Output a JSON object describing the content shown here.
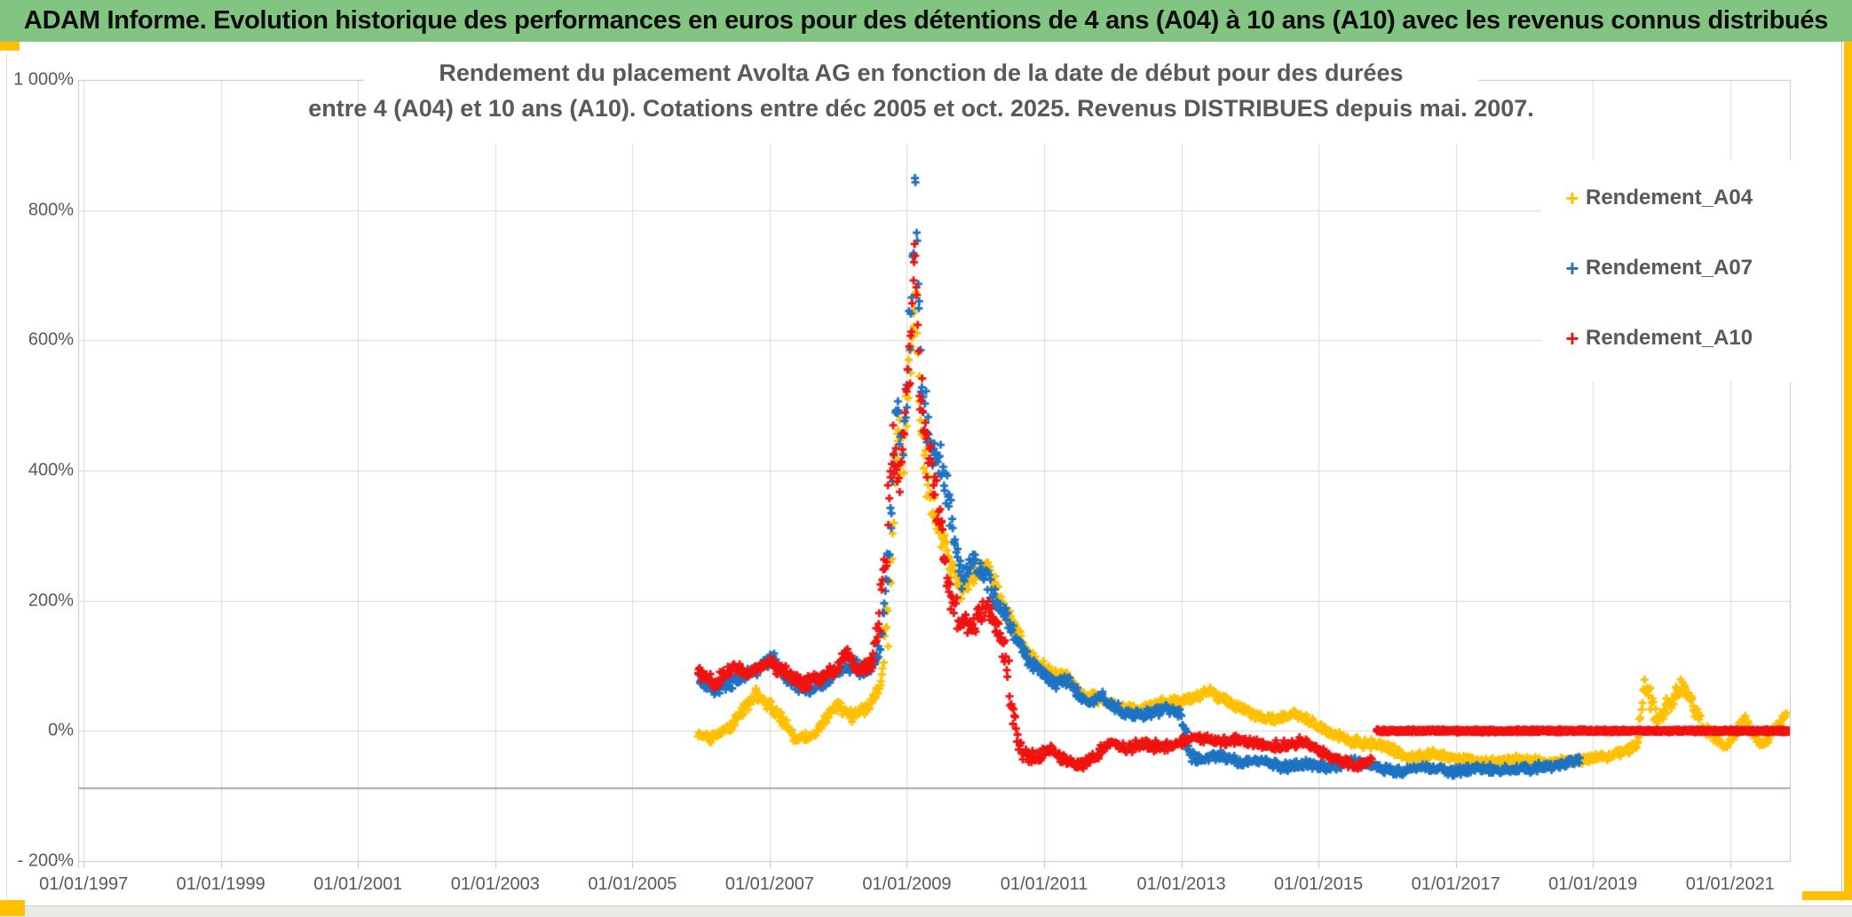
{
  "header": {
    "title": "ADAM Informe. Evolution historique des performances en euros pour des détentions de 4 ans (A04) à 10 ans (A10) avec les revenus connus distribués",
    "bg_color": "#82c482",
    "text_color": "#0d0d0d"
  },
  "frame": {
    "accent_yellow": "#ffc000",
    "bottom_bar_color": "#e9e9e6"
  },
  "chart_data": {
    "type": "scatter",
    "title_line1": "Rendement du placement Avolta AG en fonction de la date de début pour des durées",
    "title_line2": "entre 4 (A04) et 10 ans (A10). Cotations entre déc 2005 et oct. 2025. Revenus DISTRIBUES depuis mai. 2007.",
    "x_axis": {
      "tick_years": [
        1997,
        1999,
        2001,
        2003,
        2005,
        2007,
        2009,
        2011,
        2013,
        2015,
        2017,
        2019,
        2021
      ],
      "tick_labels": [
        "01/01/1997",
        "01/01/1999",
        "01/01/2001",
        "01/01/2003",
        "01/01/2005",
        "01/01/2007",
        "01/01/2009",
        "01/01/2011",
        "01/01/2013",
        "01/01/2015",
        "01/01/2017",
        "01/01/2019",
        "01/01/2021"
      ],
      "min_year": 1996.92,
      "max_year": 2021.87
    },
    "y_axis": {
      "tick_values": [
        1000,
        800,
        600,
        400,
        200,
        0,
        -200
      ],
      "tick_labels": [
        "1 000%",
        "800%",
        "600%",
        "400%",
        "200%",
        "0%",
        "- 200%"
      ],
      "min": -200,
      "max": 1000,
      "grid": true,
      "gridline_color": "#d9d9d9"
    },
    "axis_line_value": -88,
    "axis_line_color": "#ababab",
    "legend": {
      "position": "right",
      "items": [
        {
          "label": "Rendement_A04",
          "color": "#ffc000"
        },
        {
          "label": "Rendement_A07",
          "color": "#1e73c2"
        },
        {
          "label": "Rendement_A10",
          "color": "#f01310"
        }
      ]
    },
    "series": [
      {
        "name": "Rendement_A04",
        "color": "#ffc000",
        "marker": "plus",
        "keyframes": [
          [
            2005.95,
            -5,
            8
          ],
          [
            2006.15,
            -12,
            8
          ],
          [
            2006.45,
            8,
            10
          ],
          [
            2006.8,
            58,
            12
          ],
          [
            2007.1,
            28,
            12
          ],
          [
            2007.4,
            -15,
            10
          ],
          [
            2007.65,
            -5,
            8
          ],
          [
            2008.0,
            42,
            12
          ],
          [
            2008.2,
            22,
            10
          ],
          [
            2008.45,
            38,
            12
          ],
          [
            2008.62,
            70,
            20
          ],
          [
            2008.75,
            200,
            60
          ],
          [
            2008.85,
            460,
            70
          ],
          [
            2008.95,
            420,
            60
          ],
          [
            2009.05,
            560,
            60
          ],
          [
            2009.13,
            680,
            30
          ],
          [
            2009.2,
            470,
            60
          ],
          [
            2009.35,
            330,
            45
          ],
          [
            2009.5,
            300,
            35
          ],
          [
            2009.65,
            250,
            28
          ],
          [
            2009.8,
            220,
            22
          ],
          [
            2010.0,
            245,
            22
          ],
          [
            2010.18,
            255,
            22
          ],
          [
            2010.38,
            195,
            18
          ],
          [
            2010.58,
            155,
            15
          ],
          [
            2010.78,
            118,
            12
          ],
          [
            2010.95,
            100,
            10
          ],
          [
            2011.15,
            88,
            10
          ],
          [
            2011.3,
            90,
            10
          ],
          [
            2011.55,
            55,
            10
          ],
          [
            2011.8,
            50,
            10
          ],
          [
            2012.1,
            38,
            9
          ],
          [
            2012.4,
            32,
            9
          ],
          [
            2012.7,
            42,
            9
          ],
          [
            2013.0,
            45,
            9
          ],
          [
            2013.4,
            60,
            9
          ],
          [
            2013.75,
            40,
            9
          ],
          [
            2014.1,
            24,
            9
          ],
          [
            2014.4,
            16,
            9
          ],
          [
            2014.65,
            28,
            9
          ],
          [
            2015.0,
            5,
            9
          ],
          [
            2015.35,
            -10,
            9
          ],
          [
            2015.7,
            -20,
            9
          ],
          [
            2016.0,
            -25,
            9
          ],
          [
            2016.3,
            -42,
            8
          ],
          [
            2016.7,
            -36,
            8
          ],
          [
            2017.1,
            -45,
            8
          ],
          [
            2017.5,
            -48,
            8
          ],
          [
            2017.9,
            -43,
            8
          ],
          [
            2018.3,
            -50,
            8
          ],
          [
            2018.7,
            -45,
            8
          ],
          [
            2019.1,
            -40,
            8
          ],
          [
            2019.45,
            -33,
            8
          ],
          [
            2019.65,
            -18,
            10
          ],
          [
            2019.75,
            75,
            18
          ],
          [
            2019.85,
            50,
            25
          ],
          [
            2019.95,
            12,
            15
          ],
          [
            2020.1,
            42,
            18
          ],
          [
            2020.3,
            72,
            16
          ],
          [
            2020.45,
            42,
            15
          ],
          [
            2020.6,
            5,
            12
          ],
          [
            2020.78,
            -12,
            10
          ],
          [
            2020.95,
            -25,
            8
          ],
          [
            2021.1,
            2,
            10
          ],
          [
            2021.2,
            20,
            8
          ],
          [
            2021.35,
            -8,
            8
          ],
          [
            2021.5,
            -20,
            8
          ],
          [
            2021.65,
            3,
            8
          ],
          [
            2021.82,
            25,
            8
          ]
        ]
      },
      {
        "name": "Rendement_A07",
        "color": "#1e73c2",
        "marker": "plus",
        "keyframes": [
          [
            2005.95,
            85,
            12
          ],
          [
            2006.2,
            62,
            12
          ],
          [
            2006.5,
            78,
            12
          ],
          [
            2006.8,
            95,
            12
          ],
          [
            2007.05,
            112,
            12
          ],
          [
            2007.25,
            80,
            12
          ],
          [
            2007.5,
            60,
            10
          ],
          [
            2007.75,
            70,
            10
          ],
          [
            2008.0,
            92,
            12
          ],
          [
            2008.2,
            100,
            14
          ],
          [
            2008.45,
            88,
            14
          ],
          [
            2008.62,
            130,
            25
          ],
          [
            2008.75,
            280,
            80
          ],
          [
            2008.85,
            490,
            70
          ],
          [
            2008.95,
            420,
            60
          ],
          [
            2009.05,
            640,
            80
          ],
          [
            2009.12,
            840,
            40
          ],
          [
            2009.2,
            550,
            70
          ],
          [
            2009.35,
            430,
            50
          ],
          [
            2009.5,
            420,
            40
          ],
          [
            2009.65,
            320,
            32
          ],
          [
            2009.8,
            235,
            25
          ],
          [
            2010.0,
            255,
            22
          ],
          [
            2010.18,
            225,
            25
          ],
          [
            2010.38,
            185,
            20
          ],
          [
            2010.55,
            150,
            16
          ],
          [
            2010.75,
            112,
            12
          ],
          [
            2010.95,
            90,
            10
          ],
          [
            2011.15,
            70,
            10
          ],
          [
            2011.35,
            78,
            10
          ],
          [
            2011.6,
            45,
            10
          ],
          [
            2011.85,
            52,
            10
          ],
          [
            2012.15,
            28,
            9
          ],
          [
            2012.45,
            25,
            9
          ],
          [
            2012.75,
            34,
            9
          ],
          [
            2012.98,
            26,
            9
          ],
          [
            2013.07,
            -15,
            28
          ],
          [
            2013.18,
            -42,
            10
          ],
          [
            2013.55,
            -38,
            8
          ],
          [
            2013.85,
            -48,
            8
          ],
          [
            2014.15,
            -44,
            8
          ],
          [
            2014.5,
            -56,
            8
          ],
          [
            2014.85,
            -50,
            8
          ],
          [
            2015.15,
            -56,
            8
          ],
          [
            2015.5,
            -48,
            8
          ],
          [
            2015.85,
            -56,
            8
          ],
          [
            2016.15,
            -62,
            8
          ],
          [
            2016.55,
            -54,
            8
          ],
          [
            2016.95,
            -62,
            8
          ],
          [
            2017.35,
            -57,
            8
          ],
          [
            2017.75,
            -62,
            8
          ],
          [
            2018.15,
            -57,
            8
          ],
          [
            2018.5,
            -52,
            8
          ],
          [
            2018.82,
            -42,
            8
          ]
        ]
      },
      {
        "name": "Rendement_A10",
        "color": "#f01310",
        "marker": "plus",
        "keyframes": [
          [
            2005.95,
            92,
            12
          ],
          [
            2006.2,
            72,
            12
          ],
          [
            2006.45,
            98,
            12
          ],
          [
            2006.7,
            88,
            12
          ],
          [
            2006.95,
            105,
            12
          ],
          [
            2007.2,
            95,
            12
          ],
          [
            2007.45,
            72,
            12
          ],
          [
            2007.7,
            80,
            10
          ],
          [
            2007.95,
            95,
            12
          ],
          [
            2008.12,
            122,
            15
          ],
          [
            2008.3,
            90,
            12
          ],
          [
            2008.5,
            105,
            18
          ],
          [
            2008.65,
            220,
            70
          ],
          [
            2008.8,
            430,
            70
          ],
          [
            2008.92,
            400,
            60
          ],
          [
            2009.05,
            600,
            80
          ],
          [
            2009.12,
            750,
            45
          ],
          [
            2009.2,
            510,
            70
          ],
          [
            2009.32,
            415,
            50
          ],
          [
            2009.48,
            330,
            40
          ],
          [
            2009.62,
            215,
            40
          ],
          [
            2009.78,
            165,
            25
          ],
          [
            2009.95,
            155,
            22
          ],
          [
            2010.12,
            195,
            25
          ],
          [
            2010.3,
            165,
            22
          ],
          [
            2010.45,
            115,
            35
          ],
          [
            2010.55,
            15,
            35
          ],
          [
            2010.68,
            -32,
            15
          ],
          [
            2010.88,
            -44,
            10
          ],
          [
            2011.08,
            -28,
            10
          ],
          [
            2011.32,
            -46,
            10
          ],
          [
            2011.52,
            -54,
            10
          ],
          [
            2011.72,
            -42,
            10
          ],
          [
            2011.95,
            -18,
            9
          ],
          [
            2012.2,
            -28,
            9
          ],
          [
            2012.45,
            -18,
            9
          ],
          [
            2012.7,
            -26,
            9
          ],
          [
            2012.95,
            -18,
            9
          ],
          [
            2013.2,
            -10,
            9
          ],
          [
            2013.55,
            -16,
            9
          ],
          [
            2013.85,
            -12,
            9
          ],
          [
            2014.15,
            -18,
            9
          ],
          [
            2014.45,
            -24,
            9
          ],
          [
            2014.75,
            -16,
            9
          ],
          [
            2015.05,
            -32,
            9
          ],
          [
            2015.35,
            -46,
            9
          ],
          [
            2015.6,
            -54,
            9
          ],
          [
            2015.78,
            -45,
            9
          ]
        ],
        "flat_segment": {
          "from": 2015.85,
          "to": 2021.9,
          "value": 0
        }
      }
    ]
  }
}
